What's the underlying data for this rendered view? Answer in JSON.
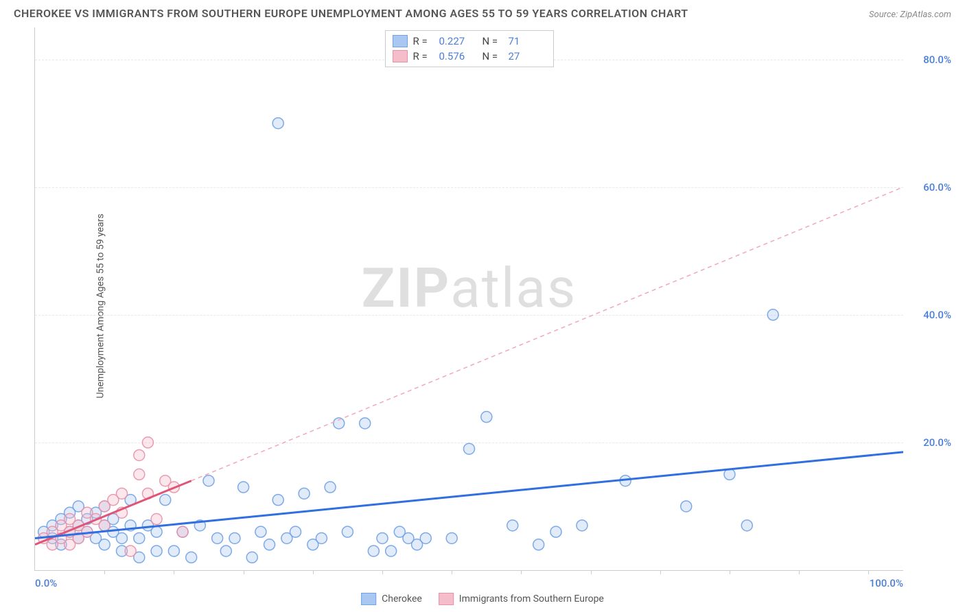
{
  "title": "CHEROKEE VS IMMIGRANTS FROM SOUTHERN EUROPE UNEMPLOYMENT AMONG AGES 55 TO 59 YEARS CORRELATION CHART",
  "source": "Source: ZipAtlas.com",
  "ylabel": "Unemployment Among Ages 55 to 59 years",
  "watermark_a": "ZIP",
  "watermark_b": "atlas",
  "chart": {
    "type": "scatter",
    "xlim": [
      0,
      100
    ],
    "ylim": [
      0,
      85
    ],
    "xtick_labels": {
      "left": "0.0%",
      "right": "100.0%"
    },
    "xtick_marks": [
      8,
      16,
      24,
      32,
      40,
      48,
      56,
      64,
      72,
      80,
      88,
      96
    ],
    "yticks": [
      {
        "v": 20,
        "label": "20.0%"
      },
      {
        "v": 40,
        "label": "40.0%"
      },
      {
        "v": 60,
        "label": "60.0%"
      },
      {
        "v": 80,
        "label": "80.0%"
      }
    ],
    "axis_label_color": "#4a7fd8",
    "grid_color": "#e8e8e8",
    "background_color": "#ffffff",
    "marker_radius": 8,
    "fill_opacity": 0.35,
    "stroke_opacity": 0.9,
    "stroke_width": 1.5,
    "series": [
      {
        "name": "Cherokee",
        "color": "#6fa1e6",
        "fill": "#a9c7f0",
        "R": "0.227",
        "N": "71",
        "trend": {
          "x1": 0,
          "y1": 5,
          "x2": 100,
          "y2": 18.5,
          "dash": "none",
          "width": 3,
          "color": "#2f6fe0"
        },
        "points": [
          [
            1,
            6
          ],
          [
            2,
            5
          ],
          [
            2,
            7
          ],
          [
            3,
            4
          ],
          [
            3,
            8
          ],
          [
            4,
            6
          ],
          [
            4,
            9
          ],
          [
            5,
            5
          ],
          [
            5,
            7
          ],
          [
            5,
            10
          ],
          [
            6,
            6
          ],
          [
            6,
            8
          ],
          [
            7,
            5
          ],
          [
            7,
            9
          ],
          [
            8,
            4
          ],
          [
            8,
            7
          ],
          [
            8,
            10
          ],
          [
            9,
            6
          ],
          [
            9,
            8
          ],
          [
            10,
            5
          ],
          [
            10,
            3
          ],
          [
            11,
            7
          ],
          [
            11,
            11
          ],
          [
            12,
            2
          ],
          [
            12,
            5
          ],
          [
            13,
            7
          ],
          [
            14,
            3
          ],
          [
            14,
            6
          ],
          [
            15,
            11
          ],
          [
            16,
            3
          ],
          [
            17,
            6
          ],
          [
            18,
            2
          ],
          [
            19,
            7
          ],
          [
            20,
            14
          ],
          [
            21,
            5
          ],
          [
            22,
            3
          ],
          [
            23,
            5
          ],
          [
            24,
            13
          ],
          [
            25,
            2
          ],
          [
            26,
            6
          ],
          [
            27,
            4
          ],
          [
            28,
            11
          ],
          [
            29,
            5
          ],
          [
            30,
            6
          ],
          [
            31,
            12
          ],
          [
            32,
            4
          ],
          [
            33,
            5
          ],
          [
            34,
            13
          ],
          [
            35,
            23
          ],
          [
            36,
            6
          ],
          [
            38,
            23
          ],
          [
            39,
            3
          ],
          [
            40,
            5
          ],
          [
            41,
            3
          ],
          [
            42,
            6
          ],
          [
            43,
            5
          ],
          [
            44,
            4
          ],
          [
            45,
            5
          ],
          [
            48,
            5
          ],
          [
            50,
            19
          ],
          [
            52,
            24
          ],
          [
            55,
            7
          ],
          [
            58,
            4
          ],
          [
            60,
            6
          ],
          [
            63,
            7
          ],
          [
            68,
            14
          ],
          [
            75,
            10
          ],
          [
            80,
            15
          ],
          [
            82,
            7
          ],
          [
            28,
            70
          ],
          [
            85,
            40
          ]
        ]
      },
      {
        "name": "Immigrants from Southern Europe",
        "color": "#e890a8",
        "fill": "#f5bcc9",
        "R": "0.576",
        "N": "27",
        "trend_solid": {
          "x1": 0,
          "y1": 4,
          "x2": 18,
          "y2": 14,
          "dash": "none",
          "width": 3,
          "color": "#e05577"
        },
        "trend_dash": {
          "x1": 18,
          "y1": 14,
          "x2": 100,
          "y2": 60,
          "dash": "6,5",
          "width": 1.5,
          "color": "#f0a8b8"
        },
        "points": [
          [
            1,
            5
          ],
          [
            2,
            4
          ],
          [
            2,
            6
          ],
          [
            3,
            5
          ],
          [
            3,
            7
          ],
          [
            4,
            4
          ],
          [
            4,
            6
          ],
          [
            4,
            8
          ],
          [
            5,
            5
          ],
          [
            5,
            7
          ],
          [
            6,
            6
          ],
          [
            6,
            9
          ],
          [
            7,
            8
          ],
          [
            8,
            7
          ],
          [
            8,
            10
          ],
          [
            9,
            11
          ],
          [
            10,
            9
          ],
          [
            10,
            12
          ],
          [
            11,
            3
          ],
          [
            12,
            15
          ],
          [
            12,
            18
          ],
          [
            13,
            12
          ],
          [
            13,
            20
          ],
          [
            14,
            8
          ],
          [
            15,
            14
          ],
          [
            16,
            13
          ],
          [
            17,
            6
          ]
        ]
      }
    ]
  },
  "legend_top_labels": {
    "R": "R =",
    "N": "N ="
  },
  "legend_bottom": [
    {
      "label": "Cherokee",
      "fill": "#a9c7f0",
      "stroke": "#6fa1e6"
    },
    {
      "label": "Immigrants from Southern Europe",
      "fill": "#f5bcc9",
      "stroke": "#e890a8"
    }
  ]
}
